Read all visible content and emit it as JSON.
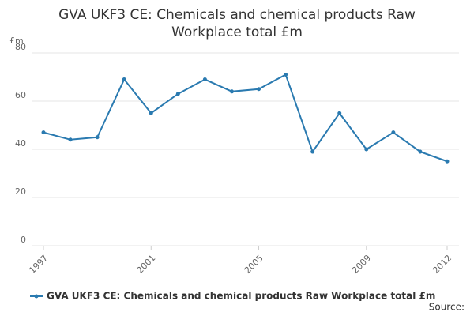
{
  "chart_data": {
    "type": "line",
    "title": "GVA UKF3 CE: Chemicals and chemical products Raw Workplace total £m",
    "y_label": "£m",
    "x": [
      1997,
      1998,
      1999,
      2000,
      2001,
      2002,
      2003,
      2004,
      2005,
      2006,
      2007,
      2008,
      2009,
      2010,
      2011,
      2012
    ],
    "series": [
      {
        "name": "GVA UKF3 CE: Chemicals and chemical products Raw Workplace total £m",
        "color": "#2a7ab0",
        "values": [
          47,
          44,
          45,
          69,
          55,
          63,
          69,
          64,
          65,
          71,
          39,
          55,
          40,
          47,
          39,
          35
        ]
      }
    ],
    "xlim": [
      1997,
      2012
    ],
    "xticks": [
      1997,
      2001,
      2005,
      2009,
      2012
    ],
    "ylim": [
      0,
      80
    ],
    "yticks": [
      0,
      20,
      40,
      60,
      80
    ],
    "grid": true,
    "legend": "bottom",
    "source": "Source:"
  }
}
